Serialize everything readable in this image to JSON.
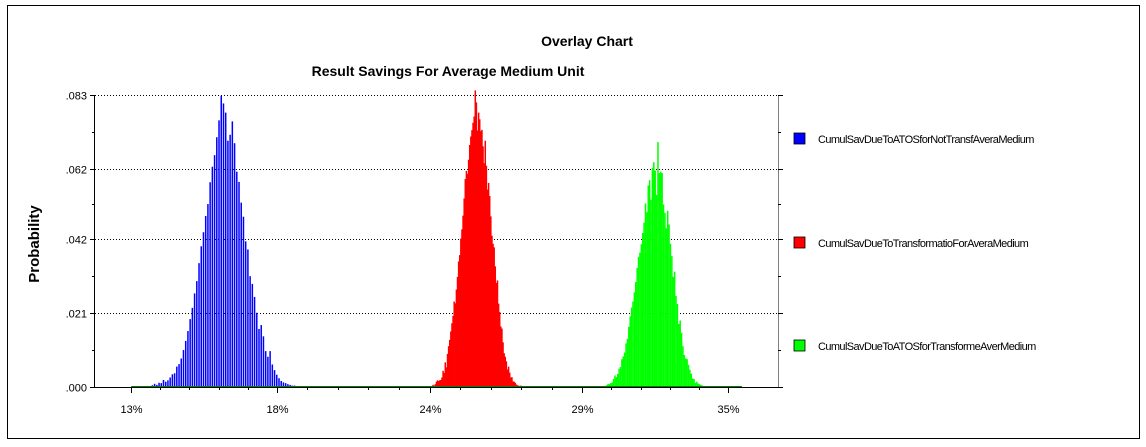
{
  "chart_data": {
    "type": "bar",
    "title": "Overlay Chart",
    "subtitle": "Result Savings For Average Medium Unit",
    "xlabel": "",
    "ylabel": "Probability",
    "xlim": [
      11.7,
      36.3
    ],
    "ylim": [
      0,
      0.083
    ],
    "x_tick_labels": [
      "13%",
      "18%",
      "24%",
      "29%",
      "35%"
    ],
    "x_tick_values": [
      13,
      18.25,
      23.75,
      29.25,
      34.5
    ],
    "y_tick_labels": [
      ".000",
      ".021",
      ".042",
      ".062",
      ".083"
    ],
    "y_tick_values": [
      0,
      0.021,
      0.042,
      0.062,
      0.083
    ],
    "grid": "horizontal dotted",
    "legend_position": "right",
    "series": [
      {
        "name": "CumulSavDueToATOSforNotTransfAveraMedium",
        "color": "#0000ff",
        "x_start": 13.5,
        "x_step": 0.08,
        "values": [
          0.0001,
          0.0003,
          0.0001,
          0.0005,
          0.0009,
          0.0006,
          0.0012,
          0.0011,
          0.002,
          0.0015,
          0.0019,
          0.0027,
          0.0036,
          0.0039,
          0.0058,
          0.0065,
          0.0081,
          0.0105,
          0.0131,
          0.0159,
          0.0193,
          0.0225,
          0.0266,
          0.0301,
          0.0352,
          0.04,
          0.044,
          0.0486,
          0.052,
          0.0582,
          0.0626,
          0.0659,
          0.071,
          0.0758,
          0.0828,
          0.0806,
          0.078,
          0.07,
          0.0717,
          0.0755,
          0.0693,
          0.0612,
          0.0583,
          0.0524,
          0.0484,
          0.0414,
          0.0391,
          0.0315,
          0.0293,
          0.0256,
          0.0211,
          0.0165,
          0.0176,
          0.0144,
          0.0102,
          0.0086,
          0.0102,
          0.0064,
          0.0048,
          0.0035,
          0.0025,
          0.0017,
          0.0013,
          0.0011,
          0.0008,
          0.0006,
          0.0004,
          0.0004,
          0.0002,
          0.0001,
          0.0002,
          0.0001,
          0.0001,
          0.0001
        ]
      },
      {
        "name": "CumulSavDueToTransformatioForAveraMedium",
        "color": "#ff0000",
        "x_start": 23.85,
        "x_step": 0.04,
        "values": [
          0.0006,
          0.0004,
          0.0008,
          0.0015,
          0.0019,
          0.0017,
          0.0019,
          0.002,
          0.0027,
          0.0046,
          0.004,
          0.007,
          0.0056,
          0.0094,
          0.0116,
          0.0134,
          0.0158,
          0.0181,
          0.0202,
          0.0243,
          0.0238,
          0.0277,
          0.0313,
          0.0357,
          0.0375,
          0.0422,
          0.0448,
          0.0487,
          0.0536,
          0.0591,
          0.0614,
          0.0606,
          0.0646,
          0.0688,
          0.0712,
          0.073,
          0.0751,
          0.0769,
          0.0843,
          0.0809,
          0.0729,
          0.078,
          0.0761,
          0.0727,
          0.0731,
          0.0684,
          0.0636,
          0.07,
          0.0629,
          0.0561,
          0.058,
          0.0543,
          0.0485,
          0.043,
          0.0407,
          0.0397,
          0.0343,
          0.0296,
          0.0303,
          0.0237,
          0.0213,
          0.0172,
          0.0166,
          0.0127,
          0.0096,
          0.0086,
          0.0073,
          0.005,
          0.0058,
          0.0041,
          0.0027,
          0.0028,
          0.0016,
          0.0015,
          0.0012,
          0.0007,
          0.0005,
          0.0004,
          0.0002,
          0.0004
        ]
      },
      {
        "name": "CumulSavDueToATOSforTransformeAverMedium",
        "color": "#00ff00",
        "x_start": 29.95,
        "x_step": 0.05,
        "values": [
          0.0001,
          0.0001,
          0.0003,
          0.0005,
          0.0009,
          0.0008,
          0.0011,
          0.0013,
          0.0023,
          0.0033,
          0.0028,
          0.0037,
          0.0052,
          0.0057,
          0.0079,
          0.0087,
          0.0098,
          0.0124,
          0.0137,
          0.0171,
          0.0201,
          0.0226,
          0.0243,
          0.0269,
          0.0298,
          0.0338,
          0.037,
          0.0382,
          0.0406,
          0.0438,
          0.0467,
          0.0522,
          0.0497,
          0.0573,
          0.0588,
          0.0532,
          0.0623,
          0.0639,
          0.0615,
          0.0546,
          0.0696,
          0.0608,
          0.0612,
          0.0608,
          0.0519,
          0.0495,
          0.0451,
          0.0501,
          0.0462,
          0.0407,
          0.0372,
          0.0313,
          0.0328,
          0.0259,
          0.0236,
          0.0179,
          0.0189,
          0.0154,
          0.0116,
          0.0091,
          0.0081,
          0.0079,
          0.0063,
          0.0049,
          0.0038,
          0.0024,
          0.0023,
          0.0012,
          0.0015,
          0.001,
          0.0008,
          0.0006,
          0.0004,
          0.0002,
          0.0001
        ]
      }
    ]
  }
}
